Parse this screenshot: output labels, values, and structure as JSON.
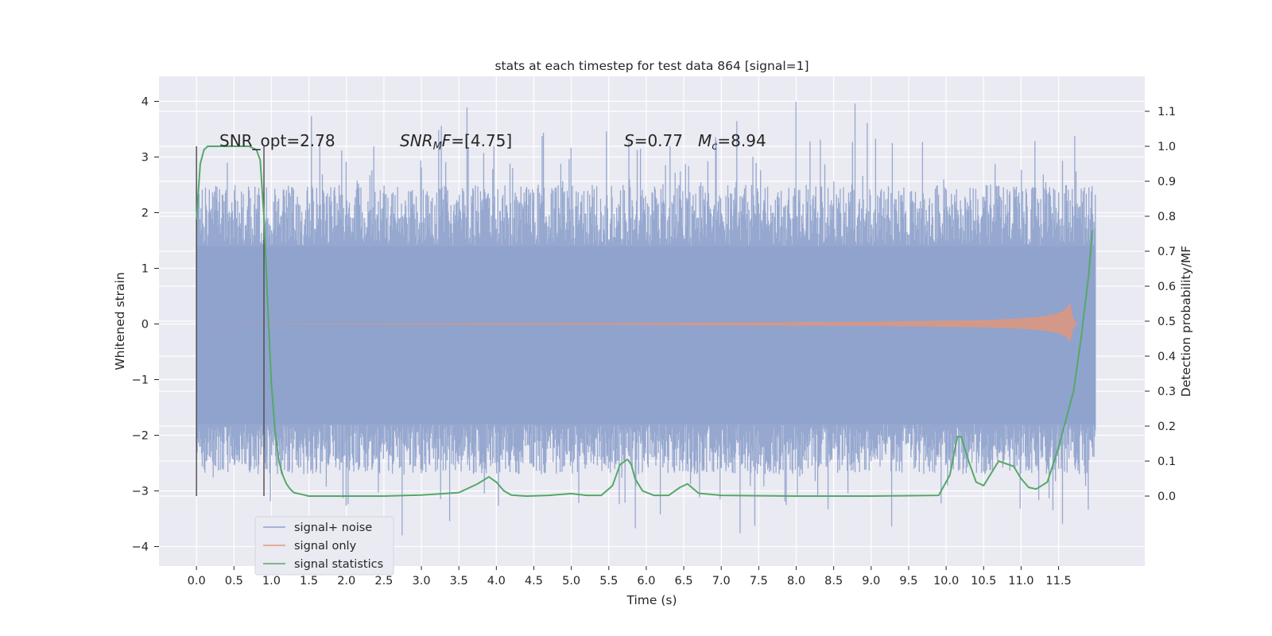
{
  "chart_data": {
    "type": "line",
    "title": "stats at each timestep for test data 864 [signal=1]",
    "xlabel": "Time (s)",
    "ylabel_left": "Whitened strain",
    "ylabel_right": "Detection probability/MF",
    "xlim": [
      -0.5,
      12.65
    ],
    "ylim_left": [
      -4.35,
      4.45
    ],
    "ylim_right": [
      -0.2,
      1.2
    ],
    "x_ticks": [
      0.0,
      0.5,
      1.0,
      1.5,
      2.0,
      2.5,
      3.0,
      3.5,
      4.0,
      4.5,
      5.0,
      5.5,
      6.0,
      6.5,
      7.0,
      7.5,
      8.0,
      8.5,
      9.0,
      9.5,
      10.0,
      10.5,
      11.0,
      11.5
    ],
    "y_ticks_left": [
      -4,
      -3,
      -2,
      -1,
      0,
      1,
      2,
      3,
      4
    ],
    "y_ticks_right": [
      0.0,
      0.1,
      0.2,
      0.3,
      0.4,
      0.5,
      0.6,
      0.7,
      0.8,
      0.9,
      1.0,
      1.1
    ],
    "grid": true,
    "legend_position": "lower-left",
    "annotations": {
      "snr_opt_label": "SNR_opt=2.78",
      "snr_mf_label": "SNR",
      "snr_mf_sub": "M",
      "snr_mf_rest": "F=[4.75]",
      "s_label": "S",
      "s_value": "=0.77",
      "mc_label": "M",
      "mc_sub": "c",
      "mc_value": "=8.94"
    },
    "series": [
      {
        "name": "signal+ noise",
        "axis": "left",
        "color": "#8ea2cc",
        "x_range": [
          0.0,
          11.99
        ],
        "band_core": [
          -1.8,
          1.4
        ],
        "envelope": [
          -3.8,
          4.1
        ]
      },
      {
        "name": "signal only",
        "axis": "left",
        "color": "#e1977d",
        "x": [
          0.0,
          6.0,
          9.0,
          10.5,
          11.0,
          11.3,
          11.5,
          11.6,
          11.65,
          11.7,
          11.75
        ],
        "amplitude": [
          0.0,
          0.02,
          0.04,
          0.07,
          0.1,
          0.14,
          0.2,
          0.26,
          0.4,
          0.08,
          0.0
        ]
      },
      {
        "name": "signal statistics",
        "axis": "right",
        "color": "#55a868",
        "x": [
          0.0,
          0.05,
          0.1,
          0.15,
          0.2,
          0.3,
          0.5,
          0.7,
          0.8,
          0.85,
          0.9,
          0.95,
          1.0,
          1.05,
          1.1,
          1.15,
          1.2,
          1.25,
          1.3,
          1.4,
          1.5,
          1.7,
          2.0,
          2.5,
          3.0,
          3.5,
          3.75,
          3.9,
          4.0,
          4.1,
          4.2,
          4.4,
          4.7,
          5.0,
          5.2,
          5.4,
          5.55,
          5.65,
          5.75,
          5.8,
          5.85,
          5.95,
          6.1,
          6.3,
          6.45,
          6.55,
          6.7,
          7.0,
          8.0,
          9.0,
          9.9,
          10.05,
          10.15,
          10.2,
          10.3,
          10.4,
          10.5,
          10.7,
          10.9,
          11.0,
          11.1,
          11.2,
          11.35,
          11.5,
          11.7,
          11.8,
          11.9,
          11.95
        ],
        "y": [
          0.79,
          0.95,
          0.99,
          1.0,
          1.0,
          1.0,
          1.0,
          1.0,
          0.99,
          0.96,
          0.8,
          0.55,
          0.32,
          0.18,
          0.1,
          0.06,
          0.035,
          0.02,
          0.01,
          0.005,
          0.0,
          0.0,
          0.0,
          0.0,
          0.003,
          0.01,
          0.035,
          0.055,
          0.04,
          0.015,
          0.003,
          0.0,
          0.002,
          0.007,
          0.002,
          0.002,
          0.03,
          0.09,
          0.105,
          0.09,
          0.05,
          0.015,
          0.002,
          0.002,
          0.025,
          0.035,
          0.008,
          0.002,
          0.0,
          0.0,
          0.002,
          0.06,
          0.17,
          0.17,
          0.1,
          0.04,
          0.03,
          0.1,
          0.085,
          0.05,
          0.025,
          0.02,
          0.04,
          0.14,
          0.3,
          0.45,
          0.63,
          0.76
        ]
      }
    ],
    "vertical_markers": [
      0.0,
      0.9
    ]
  },
  "legend": {
    "items": [
      "signal+ noise",
      "signal only",
      "signal statistics"
    ]
  }
}
